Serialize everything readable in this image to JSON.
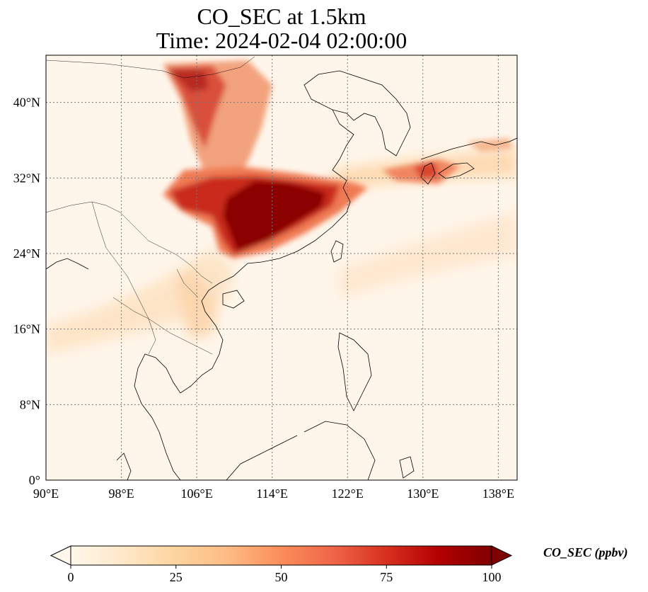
{
  "title_line1": "CO_SEC at 1.5km",
  "title_line2": "Time: 2024-02-04 02:00:00",
  "map": {
    "lon_range": [
      90,
      140
    ],
    "lat_range": [
      0,
      45
    ],
    "lon_ticks": [
      "90°E",
      "98°E",
      "106°E",
      "114°E",
      "122°E",
      "130°E",
      "138°E"
    ],
    "lon_tick_values": [
      90,
      98,
      106,
      114,
      122,
      130,
      138
    ],
    "lat_ticks": [
      "0°",
      "8°N",
      "16°N",
      "24°N",
      "32°N",
      "40°N"
    ],
    "lat_tick_values": [
      0,
      8,
      16,
      24,
      32,
      40
    ],
    "gridlines": true,
    "coastline_color": "#000000"
  },
  "colorbar": {
    "label": "CO_SEC (ppbv)",
    "ticks": [
      "0",
      "25",
      "50",
      "75",
      "100"
    ],
    "tick_values": [
      0,
      25,
      50,
      75,
      100
    ],
    "range": [
      0,
      100
    ],
    "colormap": "OrRd",
    "extend": "both",
    "colors": [
      "#fff7ec",
      "#fee8c8",
      "#fdd49e",
      "#fdbb84",
      "#fc8d59",
      "#ef6548",
      "#d7301f",
      "#b30000",
      "#7f0000"
    ]
  }
}
